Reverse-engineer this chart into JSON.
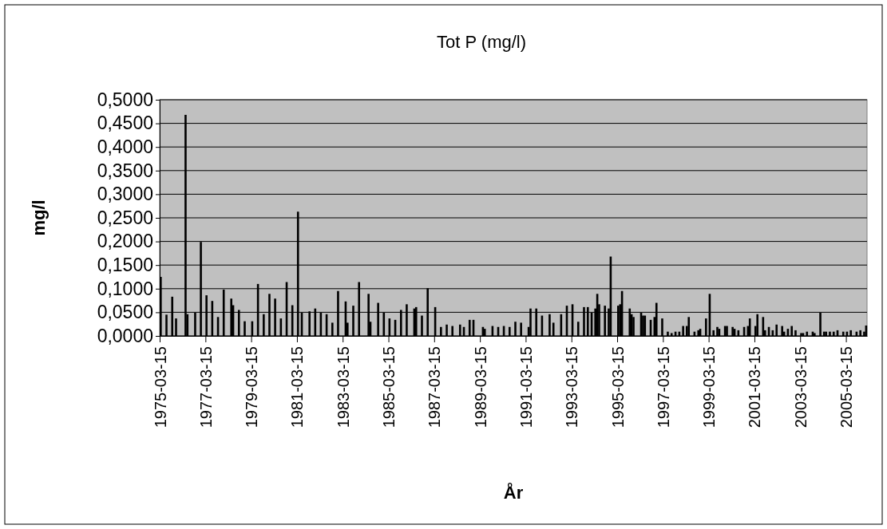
{
  "chart_data": {
    "type": "bar",
    "title": "Tot P (mg/l)",
    "xlabel": "År",
    "ylabel": "mg/l",
    "color": "#000000",
    "x": [
      "1975-03-15",
      "1975-06-15",
      "1975-09-15",
      "1975-11-15",
      "1976-04-15",
      "1976-05-15",
      "1976-09-15",
      "1976-12-15",
      "1977-03-15",
      "1977-06-15",
      "1977-09-15",
      "1977-12-15",
      "1978-04-15",
      "1978-05-15",
      "1978-08-15",
      "1978-11-15",
      "1979-03-15",
      "1979-06-15",
      "1979-09-15",
      "1979-12-15",
      "1980-03-15",
      "1980-06-15",
      "1980-09-15",
      "1980-12-15",
      "1981-03-15",
      "1981-05-15",
      "1981-09-15",
      "1981-12-15",
      "1982-03-15",
      "1982-06-15",
      "1982-09-15",
      "1982-12-15",
      "1983-04-15",
      "1983-05-15",
      "1983-08-15",
      "1983-11-15",
      "1984-04-15",
      "1984-05-15",
      "1984-09-15",
      "1984-12-15",
      "1985-03-15",
      "1985-06-15",
      "1985-09-15",
      "1985-12-15",
      "1986-04-15",
      "1986-05-15",
      "1986-08-15",
      "1986-11-15",
      "1987-03-15",
      "1987-06-15",
      "1987-09-15",
      "1987-12-15",
      "1988-04-15",
      "1988-06-15",
      "1988-09-15",
      "1988-11-15",
      "1989-04-15",
      "1989-05-15",
      "1989-09-15",
      "1989-12-15",
      "1990-03-15",
      "1990-06-15",
      "1990-09-15",
      "1990-12-15",
      "1991-04-15",
      "1991-05-15",
      "1991-08-15",
      "1991-11-15",
      "1992-03-15",
      "1992-05-15",
      "1992-09-15",
      "1992-12-15",
      "1993-03-15",
      "1993-06-15",
      "1993-09-15",
      "1993-11-15",
      "1994-01-15",
      "1994-03-15",
      "1994-04-15",
      "1994-05-15",
      "1994-08-15",
      "1994-10-15",
      "1994-11-15",
      "1995-03-15",
      "1995-04-15",
      "1995-05-15",
      "1995-09-15",
      "1995-10-15",
      "1995-11-15",
      "1996-03-15",
      "1996-04-15",
      "1996-05-15",
      "1996-08-15",
      "1996-10-15",
      "1996-11-15",
      "1997-02-15",
      "1997-05-15",
      "1997-07-15",
      "1997-09-15",
      "1997-11-15",
      "1998-01-15",
      "1998-03-15",
      "1998-04-15",
      "1998-07-15",
      "1998-09-15",
      "1998-10-15",
      "1999-01-15",
      "1999-03-15",
      "1999-05-15",
      "1999-07-15",
      "1999-08-15",
      "1999-11-15",
      "1999-12-15",
      "2000-03-15",
      "2000-04-15",
      "2000-06-15",
      "2000-09-15",
      "2000-11-15",
      "2000-12-15",
      "2001-03-15",
      "2001-04-15",
      "2001-07-15",
      "2001-08-15",
      "2001-10-15",
      "2001-12-15",
      "2002-02-15",
      "2002-05-15",
      "2002-06-15",
      "2002-08-15",
      "2002-10-15",
      "2002-12-15",
      "2003-03-15",
      "2003-04-15",
      "2003-06-15",
      "2003-09-15",
      "2003-10-15",
      "2004-01-15",
      "2004-03-15",
      "2004-04-15",
      "2004-06-15",
      "2004-08-15",
      "2004-10-15",
      "2005-01-15",
      "2005-03-15",
      "2005-05-15",
      "2005-08-15",
      "2005-10-15",
      "2005-12-15",
      "2006-01-15"
    ],
    "values": [
      0.125,
      0.045,
      0.083,
      0.037,
      0.468,
      0.046,
      0.049,
      0.199,
      0.086,
      0.074,
      0.04,
      0.098,
      0.079,
      0.065,
      0.055,
      0.031,
      0.031,
      0.11,
      0.046,
      0.089,
      0.079,
      0.037,
      0.114,
      0.065,
      0.263,
      0.049,
      0.052,
      0.058,
      0.049,
      0.046,
      0.028,
      0.095,
      0.073,
      0.028,
      0.064,
      0.114,
      0.089,
      0.03,
      0.07,
      0.049,
      0.037,
      0.034,
      0.055,
      0.067,
      0.058,
      0.061,
      0.043,
      0.101,
      0.061,
      0.019,
      0.024,
      0.021,
      0.024,
      0.019,
      0.034,
      0.034,
      0.019,
      0.015,
      0.021,
      0.019,
      0.021,
      0.019,
      0.03,
      0.028,
      0.019,
      0.058,
      0.058,
      0.043,
      0.046,
      0.028,
      0.046,
      0.064,
      0.067,
      0.03,
      0.061,
      0.061,
      0.049,
      0.058,
      0.089,
      0.067,
      0.064,
      0.058,
      0.168,
      0.064,
      0.067,
      0.095,
      0.058,
      0.046,
      0.04,
      0.049,
      0.043,
      0.043,
      0.034,
      0.04,
      0.07,
      0.037,
      0.009,
      0.006,
      0.009,
      0.009,
      0.021,
      0.021,
      0.04,
      0.009,
      0.012,
      0.015,
      0.037,
      0.089,
      0.012,
      0.019,
      0.015,
      0.021,
      0.021,
      0.019,
      0.015,
      0.012,
      0.019,
      0.021,
      0.037,
      0.021,
      0.046,
      0.04,
      0.012,
      0.019,
      0.012,
      0.024,
      0.021,
      0.009,
      0.015,
      0.021,
      0.012,
      0.006,
      0.006,
      0.009,
      0.009,
      0.006,
      0.049,
      0.009,
      0.009,
      0.009,
      0.009,
      0.012,
      0.009,
      0.009,
      0.012,
      0.009,
      0.012,
      0.009,
      0.022
    ],
    "xlim": [
      "1975-03-15",
      "2006-02-15"
    ],
    "xticks": [
      {
        "value": "1975-03-15",
        "label": "1975-03-15"
      },
      {
        "value": "1977-03-15",
        "label": "1977-03-15"
      },
      {
        "value": "1979-03-15",
        "label": "1979-03-15"
      },
      {
        "value": "1981-03-15",
        "label": "1981-03-15"
      },
      {
        "value": "1983-03-15",
        "label": "1983-03-15"
      },
      {
        "value": "1985-03-15",
        "label": "1985-03-15"
      },
      {
        "value": "1987-03-15",
        "label": "1987-03-15"
      },
      {
        "value": "1989-03-15",
        "label": "1989-03-15"
      },
      {
        "value": "1991-03-15",
        "label": "1991-03-15"
      },
      {
        "value": "1993-03-15",
        "label": "1993-03-15"
      },
      {
        "value": "1995-03-15",
        "label": "1995-03-15"
      },
      {
        "value": "1997-03-15",
        "label": "1997-03-15"
      },
      {
        "value": "1999-03-15",
        "label": "1999-03-15"
      },
      {
        "value": "2001-03-15",
        "label": "2001-03-15"
      },
      {
        "value": "2003-03-15",
        "label": "2003-03-15"
      },
      {
        "value": "2005-03-15",
        "label": "2005-03-15"
      }
    ],
    "ylim": [
      0,
      0.5
    ],
    "yticks": [
      {
        "value": 0,
        "label": "0,0000"
      },
      {
        "value": 0.05,
        "label": "0,0500"
      },
      {
        "value": 0.1,
        "label": "0,1000"
      },
      {
        "value": 0.15,
        "label": "0,1500"
      },
      {
        "value": 0.2,
        "label": "0,2000"
      },
      {
        "value": 0.25,
        "label": "0,2500"
      },
      {
        "value": 0.3,
        "label": "0,3000"
      },
      {
        "value": 0.35,
        "label": "0,3500"
      },
      {
        "value": 0.4,
        "label": "0,4000"
      },
      {
        "value": 0.45,
        "label": "0,4500"
      },
      {
        "value": 0.5,
        "label": "0,5000"
      }
    ],
    "grid": "y"
  }
}
